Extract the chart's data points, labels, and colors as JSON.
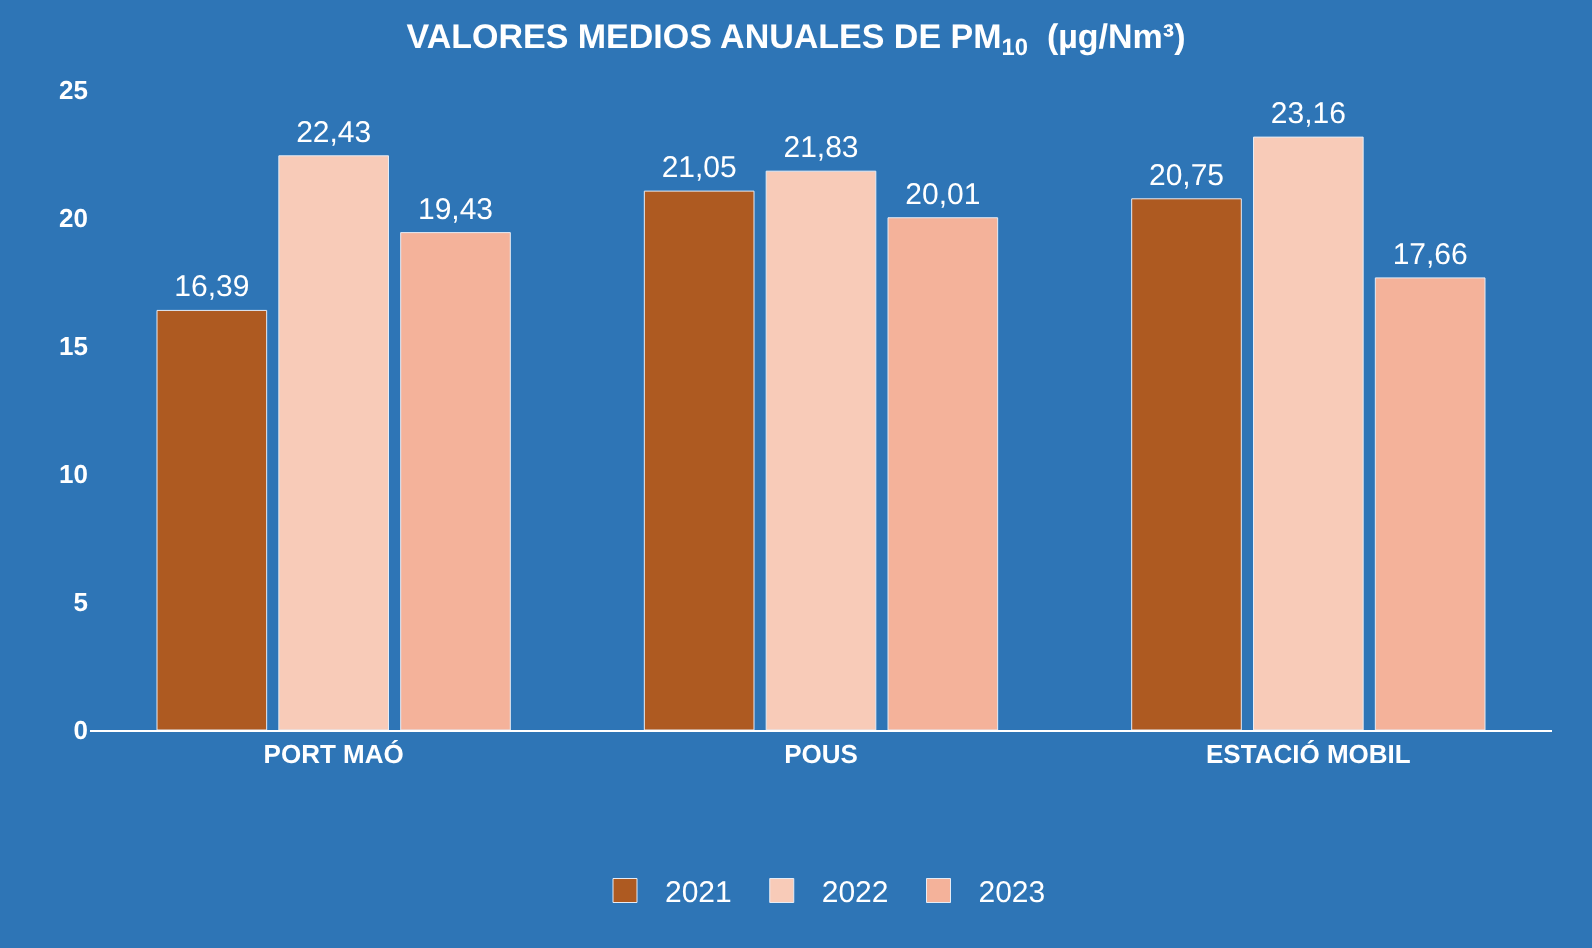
{
  "chart_data": {
    "type": "bar",
    "title": "VALORES MEDIOS ANUALES DE PM$_{10}$  (µg/Nm³)",
    "categories": [
      "PORT MAÓ",
      "POUS",
      "ESTACIÓ MOBIL"
    ],
    "series": [
      {
        "name": "2021",
        "color": "#ae5a21",
        "values": [
          16.39,
          21.05,
          20.75
        ],
        "value_labels": [
          "16,39",
          "21,05",
          "20,75"
        ]
      },
      {
        "name": "2022",
        "color": "#f8cbb8",
        "values": [
          22.43,
          21.83,
          23.16
        ],
        "value_labels": [
          "22,43",
          "21,83",
          "23,16"
        ]
      },
      {
        "name": "2023",
        "color": "#f4b29a",
        "values": [
          19.43,
          20.01,
          17.66
        ],
        "value_labels": [
          "19,43",
          "20,01",
          "17,66"
        ]
      }
    ],
    "ylim": [
      0,
      25
    ],
    "yticks": [
      0,
      5,
      10,
      15,
      20,
      25
    ],
    "grid": false,
    "legend": "bottom"
  }
}
